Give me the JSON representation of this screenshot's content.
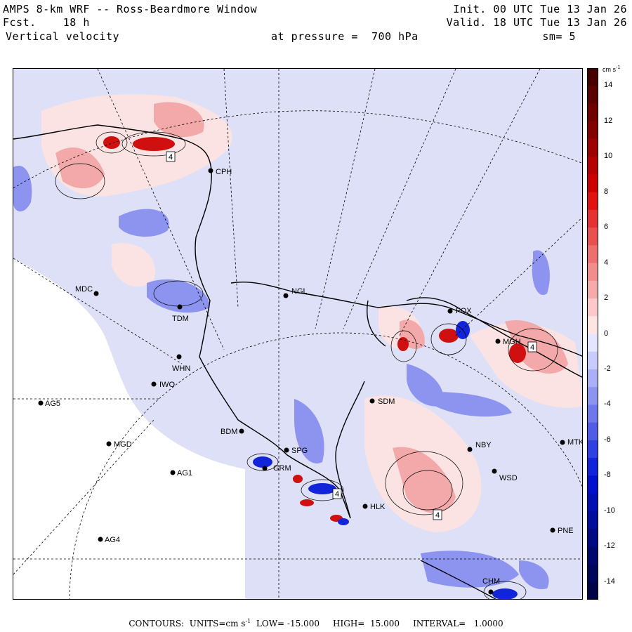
{
  "header": {
    "title": "AMPS 8-km WRF -- Ross-Beardmore Window",
    "fcst_label": "Fcst.",
    "fcst_value": "18 h",
    "variable": "Vertical velocity",
    "init": "Init. 00 UTC Tue 13 Jan 26",
    "valid": "Valid. 18 UTC Tue 13 Jan 26",
    "pressure_label": "at pressure =  700 hPa",
    "smoothing": "sm= 5"
  },
  "colorbar": {
    "units": "cm s",
    "units_exp": "-1",
    "labels": [
      "14",
      "12",
      "10",
      "8",
      "6",
      "4",
      "2",
      "0",
      "-2",
      "-4",
      "-6",
      "-8",
      "-10",
      "-12",
      "-14"
    ],
    "positive_colors": [
      "#ffe4e4",
      "#fcc8c8",
      "#f7aaaa",
      "#f28d8d",
      "#ee6f6f",
      "#e95050",
      "#e53131",
      "#e01212",
      "#cc0000",
      "#b40000",
      "#9c0000",
      "#840000",
      "#6e0000",
      "#5a0000",
      "#460000"
    ],
    "negative_colors": [
      "#e4e6ff",
      "#c8ccfa",
      "#aab0f5",
      "#8d94f0",
      "#6f78ea",
      "#505ce5",
      "#3140e0",
      "#1224da",
      "#0010cc",
      "#000eb4",
      "#000c9c",
      "#000a84",
      "#00086e",
      "#00065a",
      "#000446"
    ]
  },
  "stations": [
    {
      "name": "CPH"
    },
    {
      "name": "MDC"
    },
    {
      "name": "NGL"
    },
    {
      "name": "TDM"
    },
    {
      "name": "FOX"
    },
    {
      "name": "WHN"
    },
    {
      "name": "IWO"
    },
    {
      "name": "AG5"
    },
    {
      "name": "SDM"
    },
    {
      "name": "BDM"
    },
    {
      "name": "MGD"
    },
    {
      "name": "SPG"
    },
    {
      "name": "NBY"
    },
    {
      "name": "MTK"
    },
    {
      "name": "AG1"
    },
    {
      "name": "GRM"
    },
    {
      "name": "WSD"
    },
    {
      "name": "HLK"
    },
    {
      "name": "PNE"
    },
    {
      "name": "AG4"
    },
    {
      "name": "MGH"
    },
    {
      "name": "CHM"
    }
  ],
  "contour_boxes": [
    "4",
    "4",
    "4",
    "4"
  ],
  "footer": {
    "contours_label": "CONTOURS:",
    "units_label": "UNITS=cm s",
    "units_exp": "-1",
    "low": "LOW= -15.000",
    "high": "HIGH=  15.000",
    "interval": "INTERVAL=   1.0000"
  }
}
